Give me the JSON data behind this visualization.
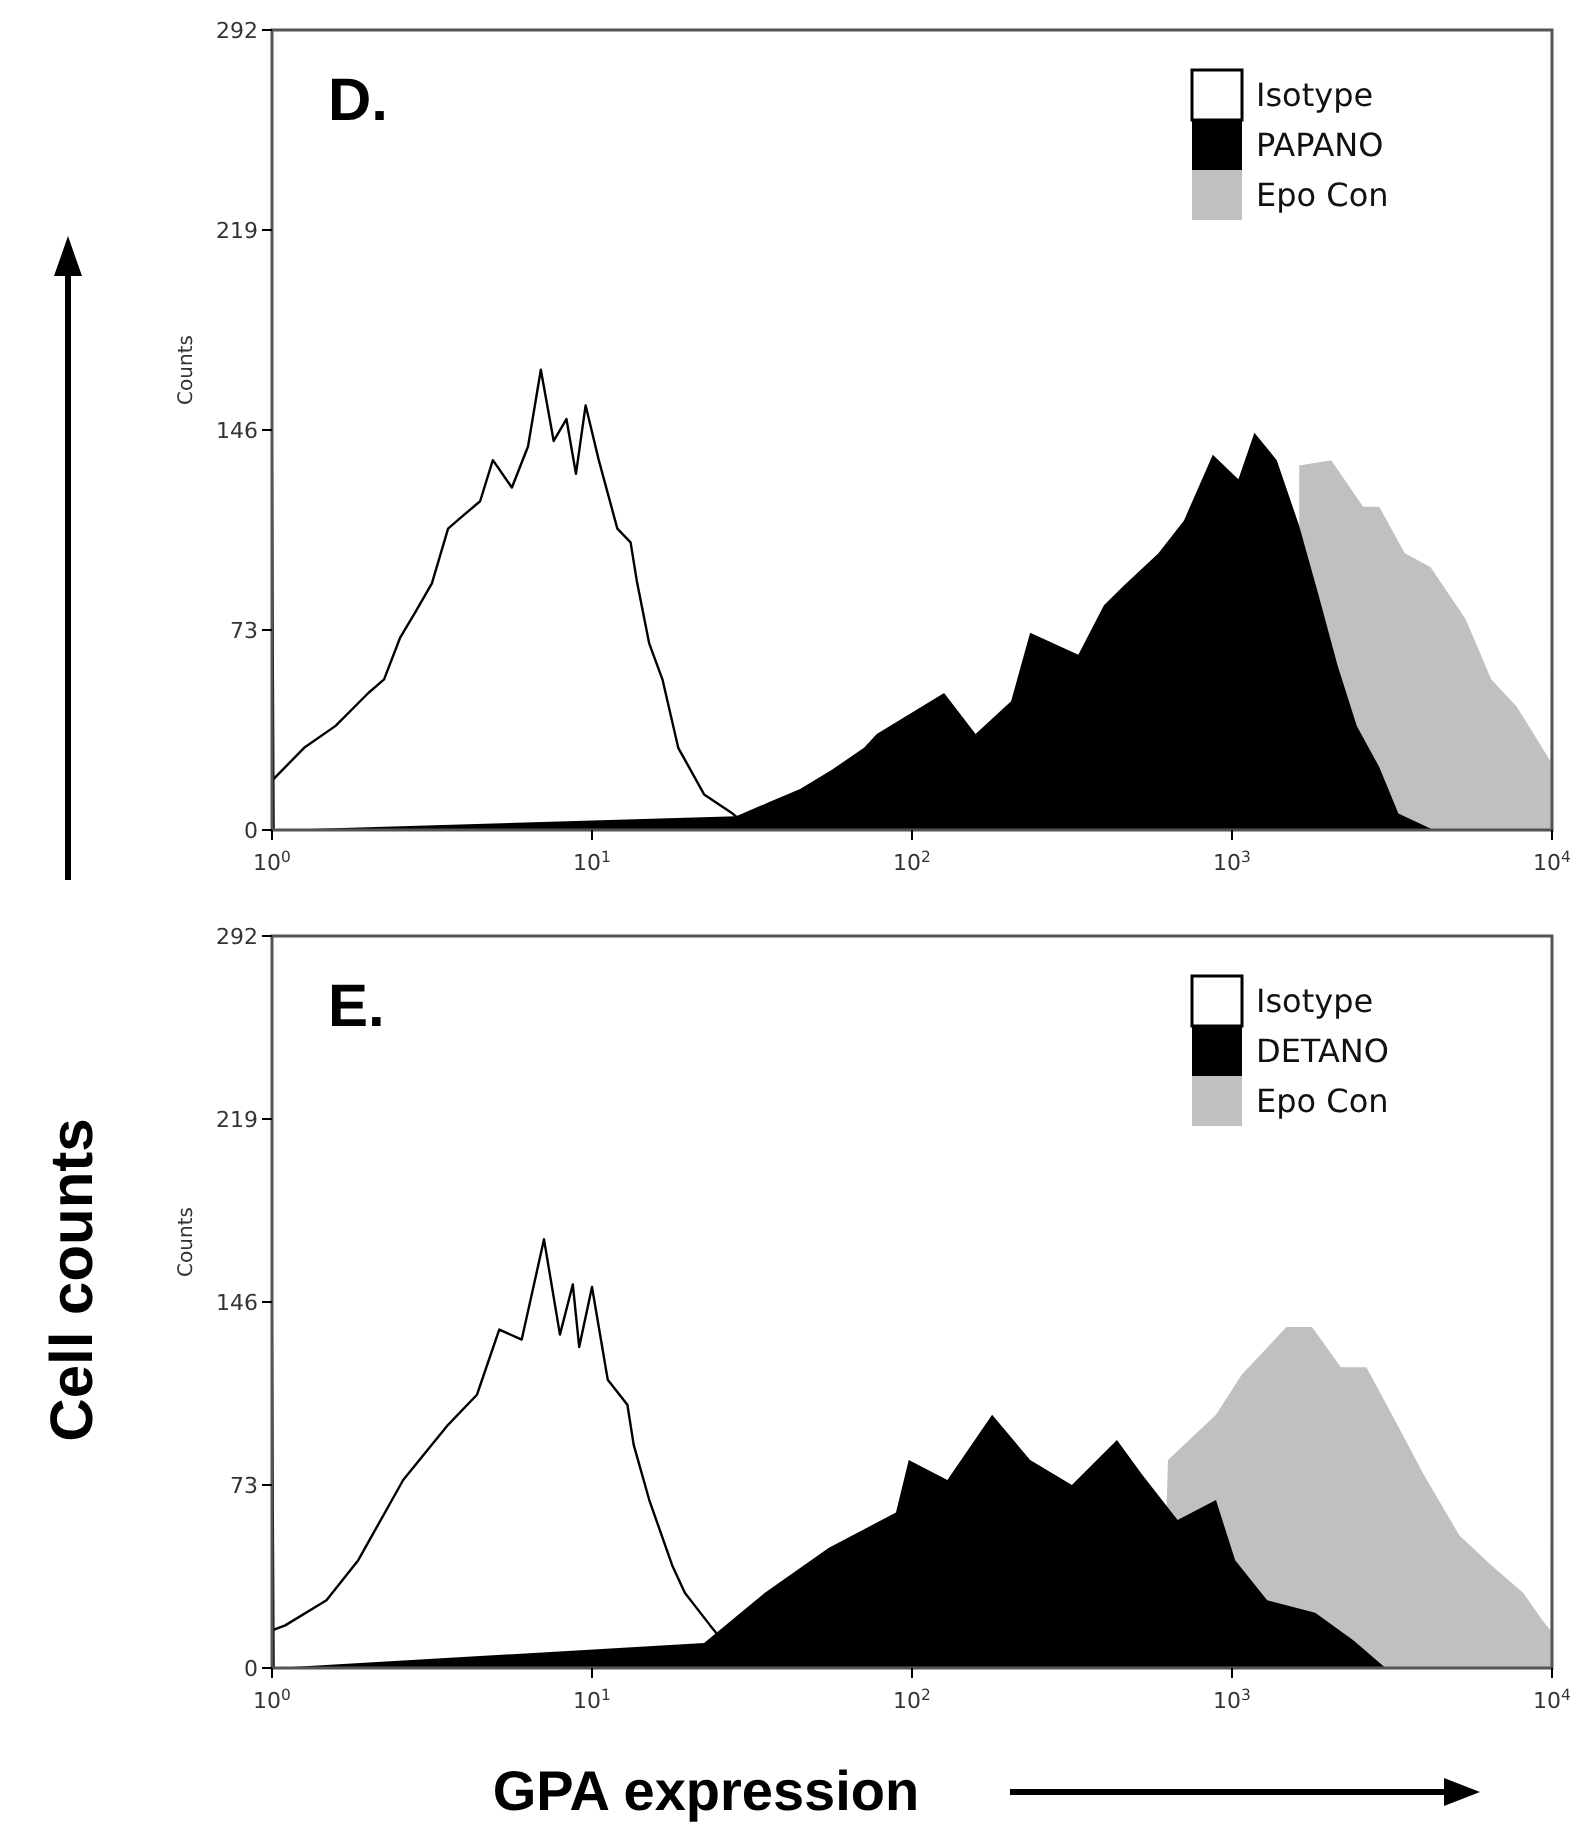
{
  "chart_data": [
    {
      "type": "area",
      "title": "D.",
      "ylabel": "Counts",
      "log": "x",
      "legend": "top right",
      "xlim": [
        1,
        10000
      ],
      "ylim": [
        0,
        292
      ],
      "xticks": [
        {
          "value": 1,
          "label": "10$^{0}$"
        },
        {
          "value": 10,
          "label": "10$^{1}$"
        },
        {
          "value": 100,
          "label": "10$^{2}$"
        },
        {
          "value": 1000,
          "label": "10$^{3}$"
        },
        {
          "value": 10000,
          "label": "10$^{4}$"
        }
      ],
      "yticks": [
        0,
        73,
        146,
        219,
        292
      ],
      "series": [
        {
          "name": "Isotype",
          "type": "line",
          "color": "#000000",
          "x": [
            1,
            1.26,
            1.58,
            2.0,
            2.24,
            2.51,
            2.82,
            3.16,
            3.55,
            3.98,
            4.47,
            4.9,
            5.62,
            6.31,
            6.92,
            7.59,
            8.32,
            8.91,
            9.55,
            10.5,
            12.0,
            13.2,
            13.8,
            15.1,
            16.6,
            18.6,
            22.4,
            27.5,
            31.6
          ],
          "values": [
            18,
            30,
            38,
            50,
            55,
            70,
            80,
            90,
            110,
            115,
            120,
            135,
            125,
            140,
            168,
            142,
            150,
            130,
            155,
            135,
            110,
            105,
            91,
            68,
            55,
            30,
            13,
            6,
            0
          ]
        },
        {
          "name": "PAPANO",
          "color": "#000000",
          "x": [
            1,
            1.02,
            28.2,
            35.5,
            44.7,
            56.2,
            70.8,
            77.6,
            126,
            158,
            204,
            234,
            331,
            398,
            457,
            589,
            708,
            871,
            1047,
            1175,
            1380,
            1622,
            1862,
            2138,
            2455,
            2884,
            3311,
            4266
          ],
          "values": [
            222,
            0,
            5,
            10,
            15,
            22,
            30,
            35,
            50,
            35,
            47,
            72,
            64,
            82,
            89,
            101,
            113,
            137,
            128,
            145,
            135,
            111,
            86,
            60,
            38,
            23,
            6,
            0
          ]
        },
        {
          "name": "Epo Con",
          "color": "#c0c0c0",
          "x": [
            1622,
            2042,
            2570,
            2884,
            3467,
            4169,
            5370,
            6457,
            7762,
            9550,
            9900,
            10000
          ],
          "values": [
            133,
            135,
            118,
            118,
            101,
            96,
            77,
            55,
            45,
            28,
            25,
            222
          ]
        }
      ]
    },
    {
      "type": "area",
      "title": "E.",
      "ylabel": "Counts",
      "xlabel": "GPA expression",
      "annotations": [
        "Cell counts"
      ],
      "log": "x",
      "legend": "top right",
      "xlim": [
        1,
        10000
      ],
      "ylim": [
        0,
        292
      ],
      "xticks": [
        {
          "value": 1,
          "label": "10$^{0}$"
        },
        {
          "value": 10,
          "label": "10$^{1}$"
        },
        {
          "value": 100,
          "label": "10$^{2}$"
        },
        {
          "value": 1000,
          "label": "10$^{3}$"
        },
        {
          "value": 10000,
          "label": "10$^{4}$"
        }
      ],
      "yticks": [
        0,
        73,
        146,
        219,
        292
      ],
      "series": [
        {
          "name": "Isotype",
          "type": "line",
          "color": "#000000",
          "x": [
            1,
            1.1,
            1.48,
            1.86,
            2.57,
            3.55,
            4.37,
            5.13,
            6.03,
            7.08,
            7.94,
            8.71,
            9.12,
            10,
            11.2,
            12.9,
            13.5,
            15.1,
            17.8,
            19.5,
            23.4,
            27.5,
            33.1
          ],
          "values": [
            15,
            17,
            27,
            43,
            75,
            97,
            109,
            135,
            131,
            171,
            133,
            153,
            128,
            152,
            115,
            105,
            89,
            67,
            41,
            30,
            17,
            6,
            0
          ]
        },
        {
          "name": "DETANO",
          "color": "#000000",
          "x": [
            1,
            1.02,
            22.4,
            34.7,
            55,
            89.1,
            97.7,
            129,
            178,
            234,
            316,
            437,
            525,
            676,
            891,
            1023,
            1288,
            1820,
            2399,
            3020
          ],
          "values": [
            223,
            0,
            10,
            30,
            48,
            62,
            83,
            75,
            101,
            83,
            73,
            91,
            77,
            59,
            67,
            43,
            27,
            22,
            11,
            0
          ]
        },
        {
          "name": "Epo Con",
          "color": "#c0c0c0",
          "x": [
            603,
            631,
            891,
            1072,
            1479,
            1778,
            2188,
            2630,
            3162,
            3981,
            5129,
            6457,
            8128,
            9333,
            9900,
            10000
          ],
          "values": [
            0,
            83,
            101,
            117,
            136,
            136,
            120,
            120,
            101,
            77,
            53,
            41,
            30,
            19,
            15,
            224
          ]
        }
      ]
    }
  ]
}
